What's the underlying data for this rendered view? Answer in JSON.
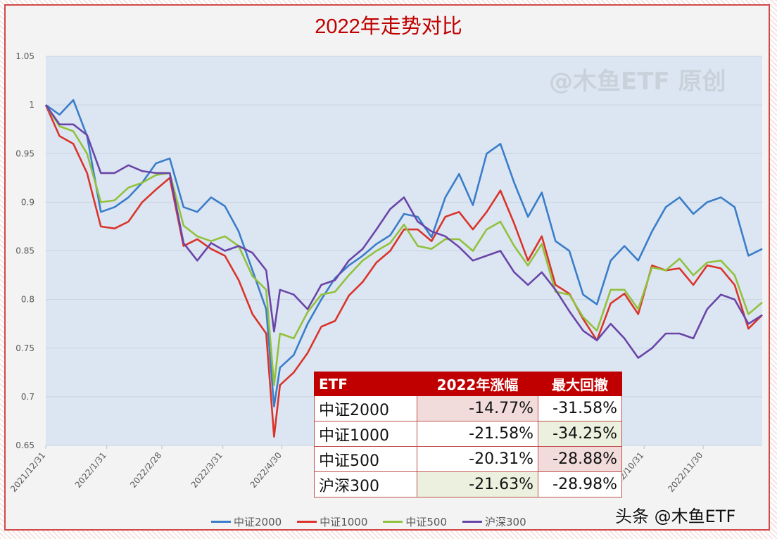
{
  "watermark_top": "@木鱼ETF 原创",
  "watermark_bottom": "头条 @木鱼ETF",
  "table": {
    "headers": [
      "ETF",
      "2022年涨幅",
      "最大回撤"
    ],
    "rows": [
      {
        "name": "中证2000",
        "return": "-14.77%",
        "drawdown": "-31.58%"
      },
      {
        "name": "中证1000",
        "return": "-21.58%",
        "drawdown": "-34.25%"
      },
      {
        "name": "中证500",
        "return": "-20.31%",
        "drawdown": "-28.88%"
      },
      {
        "name": "沪深300",
        "return": "-21.63%",
        "drawdown": "-28.98%"
      }
    ],
    "header_color": "#c00000"
  },
  "chart_data": {
    "type": "line",
    "title": "2022年走势对比",
    "xlabel": "",
    "ylabel": "",
    "ylim": [
      0.65,
      1.05
    ],
    "yticks": [
      "0.65",
      "0.7",
      "0.75",
      "0.8",
      "0.85",
      "0.9",
      "0.95",
      "1",
      "1.05"
    ],
    "xlim": [
      "2021-12-31",
      "2022-12-30"
    ],
    "xticks": [
      {
        "date": "2021-12-31",
        "label": "2021/12/31"
      },
      {
        "date": "2022-01-31",
        "label": "2022/1/31"
      },
      {
        "date": "2022-02-28",
        "label": "2022/2/28"
      },
      {
        "date": "2022-03-31",
        "label": "2022/3/31"
      },
      {
        "date": "2022-04-30",
        "label": "2022/4/30"
      },
      {
        "date": "2022-10-31",
        "label": "2022/10/31"
      },
      {
        "date": "2022-11-30",
        "label": "2022/11/30"
      }
    ],
    "grid": true,
    "legend": "bottom",
    "x": [
      "2021-12-31",
      "2022-01-07",
      "2022-01-14",
      "2022-01-21",
      "2022-01-28",
      "2022-02-04",
      "2022-02-11",
      "2022-02-18",
      "2022-02-25",
      "2022-03-04",
      "2022-03-11",
      "2022-03-18",
      "2022-03-25",
      "2022-04-01",
      "2022-04-08",
      "2022-04-15",
      "2022-04-22",
      "2022-04-26",
      "2022-04-29",
      "2022-05-06",
      "2022-05-13",
      "2022-05-20",
      "2022-05-27",
      "2022-06-03",
      "2022-06-10",
      "2022-06-17",
      "2022-06-24",
      "2022-07-01",
      "2022-07-08",
      "2022-07-15",
      "2022-07-22",
      "2022-07-29",
      "2022-08-05",
      "2022-08-12",
      "2022-08-19",
      "2022-08-26",
      "2022-09-02",
      "2022-09-09",
      "2022-09-16",
      "2022-09-23",
      "2022-09-30",
      "2022-10-07",
      "2022-10-14",
      "2022-10-21",
      "2022-10-28",
      "2022-11-04",
      "2022-11-11",
      "2022-11-18",
      "2022-11-25",
      "2022-12-02",
      "2022-12-09",
      "2022-12-16",
      "2022-12-23",
      "2022-12-30"
    ],
    "series": [
      {
        "name": "中证2000",
        "color": "#3a7dc9",
        "values": [
          1.0,
          0.99,
          1.005,
          0.968,
          0.89,
          0.895,
          0.905,
          0.92,
          0.94,
          0.945,
          0.895,
          0.89,
          0.905,
          0.896,
          0.87,
          0.83,
          0.79,
          0.69,
          0.73,
          0.743,
          0.775,
          0.8,
          0.822,
          0.835,
          0.845,
          0.857,
          0.866,
          0.888,
          0.885,
          0.864,
          0.905,
          0.929,
          0.897,
          0.95,
          0.96,
          0.92,
          0.885,
          0.91,
          0.86,
          0.85,
          0.805,
          0.795,
          0.84,
          0.855,
          0.84,
          0.87,
          0.895,
          0.905,
          0.888,
          0.9,
          0.905,
          0.895,
          0.845,
          0.852
        ]
      },
      {
        "name": "中证1000",
        "color": "#d9342b",
        "values": [
          1.0,
          0.968,
          0.96,
          0.93,
          0.875,
          0.873,
          0.88,
          0.9,
          0.913,
          0.925,
          0.855,
          0.862,
          0.852,
          0.845,
          0.82,
          0.785,
          0.765,
          0.659,
          0.712,
          0.725,
          0.745,
          0.772,
          0.778,
          0.804,
          0.818,
          0.838,
          0.85,
          0.872,
          0.872,
          0.86,
          0.885,
          0.89,
          0.872,
          0.89,
          0.912,
          0.878,
          0.84,
          0.865,
          0.815,
          0.806,
          0.78,
          0.758,
          0.796,
          0.806,
          0.785,
          0.835,
          0.83,
          0.832,
          0.815,
          0.835,
          0.832,
          0.815,
          0.77,
          0.784
        ]
      },
      {
        "name": "中证500",
        "color": "#92c13d",
        "values": [
          1.0,
          0.978,
          0.973,
          0.95,
          0.9,
          0.902,
          0.915,
          0.92,
          0.928,
          0.93,
          0.876,
          0.865,
          0.86,
          0.865,
          0.855,
          0.824,
          0.81,
          0.712,
          0.765,
          0.76,
          0.787,
          0.805,
          0.808,
          0.825,
          0.84,
          0.85,
          0.858,
          0.877,
          0.855,
          0.852,
          0.862,
          0.862,
          0.85,
          0.872,
          0.88,
          0.855,
          0.835,
          0.857,
          0.808,
          0.805,
          0.782,
          0.768,
          0.81,
          0.81,
          0.79,
          0.833,
          0.83,
          0.842,
          0.825,
          0.838,
          0.84,
          0.825,
          0.785,
          0.797
        ]
      },
      {
        "name": "沪深300",
        "color": "#6a45a8",
        "values": [
          1.0,
          0.98,
          0.98,
          0.969,
          0.93,
          0.93,
          0.938,
          0.932,
          0.93,
          0.93,
          0.858,
          0.84,
          0.858,
          0.85,
          0.855,
          0.848,
          0.83,
          0.767,
          0.81,
          0.805,
          0.79,
          0.815,
          0.82,
          0.84,
          0.852,
          0.872,
          0.893,
          0.905,
          0.88,
          0.87,
          0.865,
          0.854,
          0.84,
          0.845,
          0.85,
          0.828,
          0.815,
          0.828,
          0.81,
          0.788,
          0.768,
          0.758,
          0.775,
          0.76,
          0.74,
          0.75,
          0.765,
          0.765,
          0.76,
          0.79,
          0.805,
          0.8,
          0.775,
          0.784
        ]
      }
    ]
  }
}
